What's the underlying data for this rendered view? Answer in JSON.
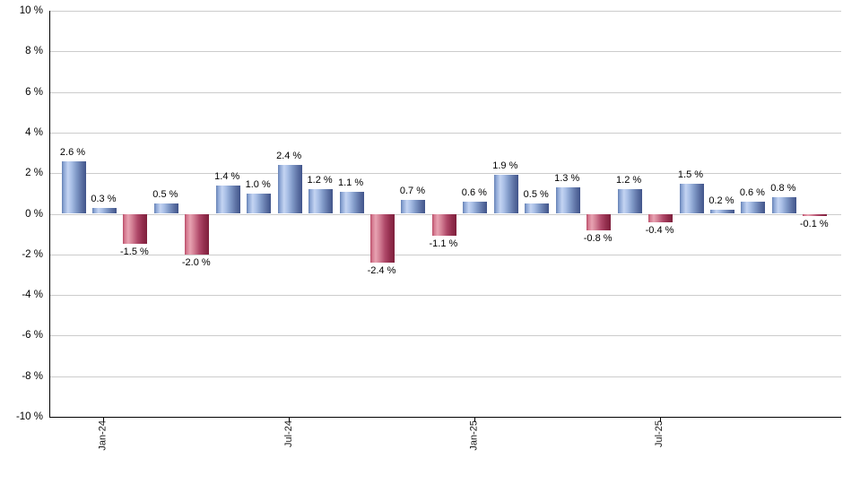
{
  "chart_data": {
    "type": "bar",
    "title": "",
    "unit": "%",
    "values": [
      2.6,
      0.3,
      -1.5,
      0.5,
      -2.0,
      1.4,
      1.0,
      2.4,
      1.2,
      1.1,
      -2.4,
      0.7,
      -1.1,
      0.6,
      1.9,
      0.5,
      1.3,
      -0.8,
      1.2,
      -0.4,
      1.5,
      0.2,
      0.6,
      0.8,
      -0.1
    ],
    "bar_labels": [
      "2.6 %",
      "0.3 %",
      "-1.5 %",
      "0.5 %",
      "-2.0 %",
      "1.4 %",
      "1.0 %",
      "2.4 %",
      "1.2 %",
      "1.1 %",
      "-2.4 %",
      "0.7 %",
      "-1.1 %",
      "0.6 %",
      "1.9 %",
      "0.5 %",
      "1.3 %",
      "-0.8 %",
      "1.2 %",
      "-0.4 %",
      "1.5 %",
      "0.2 %",
      "0.6 %",
      "0.8 %",
      "-0.1 %"
    ],
    "x_ticks": [
      {
        "label": "Jan-24",
        "index": 1
      },
      {
        "label": "Jul-24",
        "index": 7
      },
      {
        "label": "Jan-25",
        "index": 13
      },
      {
        "label": "Jul-25",
        "index": 19
      }
    ],
    "y_tick_labels": [
      "10 %",
      "8 %",
      "6 %",
      "4 %",
      "2 %",
      "0 %",
      "-2 %",
      "-4 %",
      "-6 %",
      "-8 %",
      "-10 %"
    ],
    "ylim": [
      -10,
      10
    ],
    "y_step": 2,
    "grid": "horizontal",
    "legend": "none",
    "colors": {
      "positive_bar_light": "#c4d4f2",
      "positive_bar_dark": "#41548a",
      "negative_bar_light": "#e8a3b2",
      "negative_bar_dark": "#7e1f3c",
      "gridline": "#cccccc",
      "axis": "#000000",
      "text": "#000000"
    }
  }
}
